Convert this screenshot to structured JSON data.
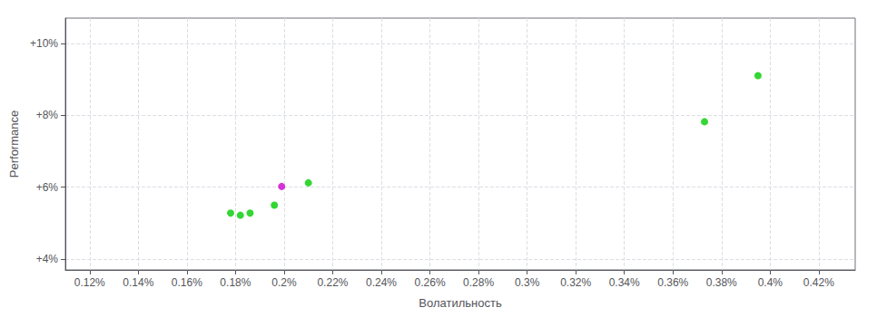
{
  "chart_data": {
    "type": "scatter",
    "xlabel": "Волатильность",
    "ylabel": "Performance",
    "xlim": [
      0.11,
      0.435
    ],
    "ylim": [
      3.7,
      10.7
    ],
    "xticks": [
      {
        "value": 0.12,
        "label": "0.12%"
      },
      {
        "value": 0.14,
        "label": "0.14%"
      },
      {
        "value": 0.16,
        "label": "0.16%"
      },
      {
        "value": 0.18,
        "label": "0.18%"
      },
      {
        "value": 0.2,
        "label": "0.2%"
      },
      {
        "value": 0.22,
        "label": "0.22%"
      },
      {
        "value": 0.24,
        "label": "0.24%"
      },
      {
        "value": 0.26,
        "label": "0.26%"
      },
      {
        "value": 0.28,
        "label": "0.28%"
      },
      {
        "value": 0.3,
        "label": "0.3%"
      },
      {
        "value": 0.32,
        "label": "0.32%"
      },
      {
        "value": 0.34,
        "label": "0.34%"
      },
      {
        "value": 0.36,
        "label": "0.36%"
      },
      {
        "value": 0.38,
        "label": "0.38%"
      },
      {
        "value": 0.4,
        "label": "0.4%"
      },
      {
        "value": 0.42,
        "label": "0.42%"
      }
    ],
    "yticks": [
      {
        "value": 4.0,
        "label": "+4%"
      },
      {
        "value": 6.0,
        "label": "+6%"
      },
      {
        "value": 8.0,
        "label": "+8%"
      },
      {
        "value": 10.0,
        "label": "+10%"
      }
    ],
    "grid": true,
    "series": [
      {
        "color": "#00cc00",
        "x": [
          0.178,
          0.182,
          0.186,
          0.196,
          0.21,
          0.373,
          0.395
        ],
        "values": [
          5.28,
          5.22,
          5.28,
          5.5,
          6.12,
          7.82,
          9.1
        ]
      },
      {
        "color": "#cc00cc",
        "x": [
          0.199
        ],
        "values": [
          6.02
        ]
      }
    ]
  }
}
